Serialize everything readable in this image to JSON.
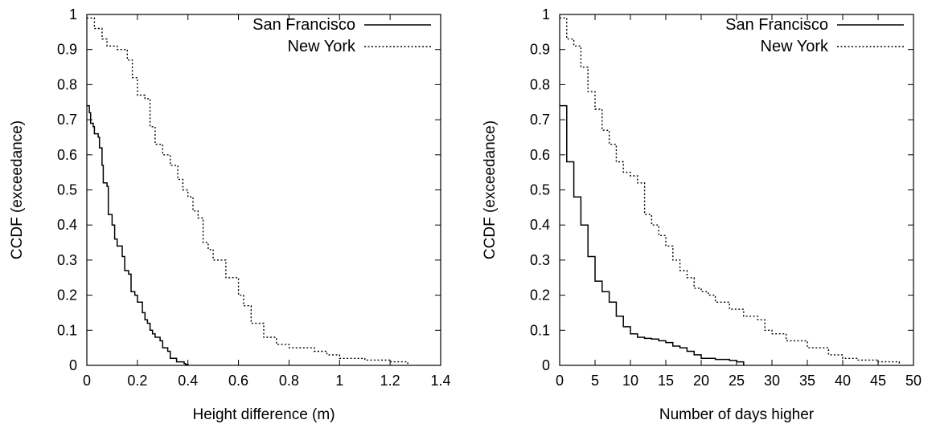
{
  "chart_data": [
    {
      "type": "line",
      "step": true,
      "xlabel": "Height difference (m)",
      "ylabel": "CCDF (exceedance)",
      "xlim": [
        0,
        1.4
      ],
      "ylim": [
        0,
        1
      ],
      "xticks": [
        "0",
        "0.2",
        "0.4",
        "0.6",
        "0.8",
        "1",
        "1.2",
        "1.4"
      ],
      "yticks": [
        "0",
        "0.1",
        "0.2",
        "0.3",
        "0.4",
        "0.5",
        "0.6",
        "0.7",
        "0.8",
        "0.9",
        "1"
      ],
      "legend_position": "top-right",
      "series": [
        {
          "name": "San Francisco",
          "style": "solid",
          "x": [
            0,
            0.01,
            0.015,
            0.025,
            0.03,
            0.045,
            0.05,
            0.06,
            0.065,
            0.08,
            0.085,
            0.1,
            0.11,
            0.12,
            0.14,
            0.15,
            0.165,
            0.175,
            0.19,
            0.2,
            0.22,
            0.23,
            0.24,
            0.25,
            0.26,
            0.27,
            0.29,
            0.3,
            0.32,
            0.33,
            0.345,
            0.355,
            0.37,
            0.385,
            0.39,
            0.4
          ],
          "y": [
            0.74,
            0.72,
            0.69,
            0.68,
            0.66,
            0.65,
            0.62,
            0.57,
            0.52,
            0.51,
            0.43,
            0.4,
            0.36,
            0.34,
            0.31,
            0.27,
            0.26,
            0.21,
            0.2,
            0.18,
            0.15,
            0.13,
            0.12,
            0.1,
            0.09,
            0.08,
            0.07,
            0.05,
            0.04,
            0.02,
            0.02,
            0.01,
            0.01,
            0.005,
            0.003,
            0
          ]
        },
        {
          "name": "New York",
          "style": "dotted",
          "x": [
            0,
            0.03,
            0.06,
            0.08,
            0.12,
            0.16,
            0.18,
            0.2,
            0.23,
            0.25,
            0.27,
            0.3,
            0.33,
            0.36,
            0.38,
            0.4,
            0.42,
            0.44,
            0.46,
            0.48,
            0.5,
            0.55,
            0.6,
            0.62,
            0.65,
            0.7,
            0.75,
            0.8,
            0.9,
            0.95,
            1.0,
            1.1,
            1.2,
            1.27
          ],
          "y": [
            0.99,
            0.96,
            0.93,
            0.91,
            0.9,
            0.87,
            0.82,
            0.77,
            0.76,
            0.68,
            0.63,
            0.6,
            0.57,
            0.53,
            0.5,
            0.48,
            0.44,
            0.42,
            0.35,
            0.33,
            0.3,
            0.25,
            0.2,
            0.17,
            0.12,
            0.08,
            0.06,
            0.05,
            0.04,
            0.03,
            0.02,
            0.015,
            0.01,
            0
          ]
        }
      ]
    },
    {
      "type": "line",
      "step": true,
      "xlabel": "Number of days higher",
      "ylabel": "CCDF (exceedance)",
      "xlim": [
        0,
        50
      ],
      "ylim": [
        0,
        1
      ],
      "xticks": [
        "0",
        "5",
        "10",
        "15",
        "20",
        "25",
        "30",
        "35",
        "40",
        "45",
        "50"
      ],
      "yticks": [
        "0",
        "0.1",
        "0.2",
        "0.3",
        "0.4",
        "0.5",
        "0.6",
        "0.7",
        "0.8",
        "0.9",
        "1"
      ],
      "legend_position": "top-right",
      "series": [
        {
          "name": "San Francisco",
          "style": "solid",
          "x": [
            0,
            1,
            2,
            3,
            4,
            5,
            6,
            7,
            8,
            9,
            10,
            11,
            12,
            13,
            14,
            15,
            16,
            17,
            18,
            19,
            20,
            22,
            24,
            25,
            26
          ],
          "y": [
            0.74,
            0.58,
            0.48,
            0.4,
            0.31,
            0.24,
            0.21,
            0.18,
            0.14,
            0.11,
            0.09,
            0.08,
            0.077,
            0.075,
            0.07,
            0.065,
            0.055,
            0.05,
            0.04,
            0.03,
            0.02,
            0.017,
            0.014,
            0.01,
            0
          ]
        },
        {
          "name": "New York",
          "style": "dotted",
          "x": [
            0,
            1,
            2,
            3,
            4,
            5,
            6,
            7,
            8,
            9,
            10,
            11,
            12,
            13,
            14,
            15,
            16,
            17,
            18,
            19,
            20,
            21,
            22,
            24,
            26,
            28,
            29,
            30,
            32,
            35,
            38,
            40,
            42,
            45,
            48
          ],
          "y": [
            0.99,
            0.93,
            0.91,
            0.85,
            0.78,
            0.73,
            0.67,
            0.63,
            0.58,
            0.55,
            0.54,
            0.52,
            0.43,
            0.4,
            0.37,
            0.34,
            0.3,
            0.27,
            0.25,
            0.22,
            0.21,
            0.2,
            0.18,
            0.16,
            0.14,
            0.13,
            0.1,
            0.09,
            0.07,
            0.05,
            0.03,
            0.02,
            0.015,
            0.01,
            0
          ]
        }
      ]
    }
  ]
}
